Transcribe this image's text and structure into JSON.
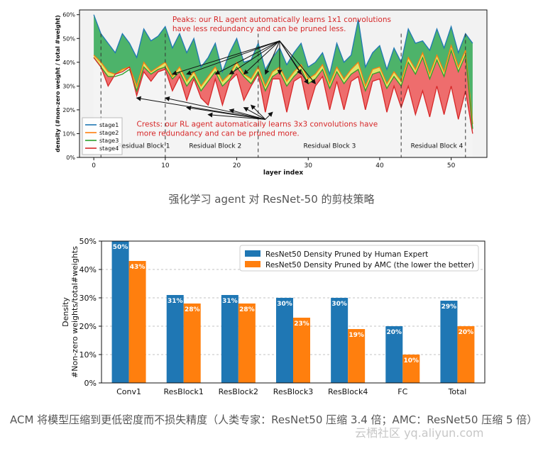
{
  "captions": {
    "top": "强化学习 agent 对 ResNet-50 的剪枝策略",
    "bottom": "ACM 将模型压缩到更低密度而不损失精度（人类专家：ResNet50 压缩 3.4 倍；AMC：ResNet50 压缩 5 倍）",
    "watermark": "云栖社区 yq.aliyun.com"
  },
  "chart_data": [
    {
      "type": "area",
      "xlabel": "layer index",
      "ylabel": "density (#non-zero weight / total #weight)",
      "xlim": [
        -2,
        55
      ],
      "ylim": [
        0,
        62
      ],
      "xticks": [
        0,
        10,
        20,
        30,
        40,
        50
      ],
      "yticks": [
        0,
        10,
        20,
        30,
        40,
        50,
        60
      ],
      "ytick_labels": [
        "0%",
        "10%",
        "20%",
        "30%",
        "40%",
        "50%",
        "60%"
      ],
      "legend_position": "lower-left",
      "block_boundaries": [
        1,
        10,
        23,
        43,
        52
      ],
      "block_labels": [
        {
          "text": "Residual Block 1",
          "x": 7,
          "y": 4
        },
        {
          "text": "Residual Block 2",
          "x": 17,
          "y": 4
        },
        {
          "text": "Residual Block 3",
          "x": 33,
          "y": 4
        },
        {
          "text": "Residual Block 4",
          "x": 48,
          "y": 4
        }
      ],
      "annotations": [
        {
          "text": "Peaks: our RL agent automatically learns 1x1 convolutions\nhave less redundancy and can be pruned less.",
          "x": 11,
          "y": 57,
          "color": "#d62728",
          "arrow_from": [
            26,
            49
          ],
          "arrow_targets": [
            [
              11,
              35
            ],
            [
              13,
              35
            ],
            [
              17,
              35
            ],
            [
              19,
              35
            ],
            [
              21,
              35
            ],
            [
              24,
              35
            ],
            [
              26,
              35
            ],
            [
              29,
              35
            ],
            [
              30,
              31
            ],
            [
              31,
              31
            ]
          ]
        },
        {
          "text": "Crests: our RL agent automatically learns 3x3 convolutions have\nmore redundancy and can be pruned more.",
          "x": 6,
          "y": 13,
          "color": "#d62728",
          "arrow_from": [
            24,
            16
          ],
          "arrow_targets": [
            [
              6,
              25
            ],
            [
              10,
              25
            ],
            [
              13,
              21
            ],
            [
              16,
              18
            ],
            [
              19,
              20
            ],
            [
              21,
              21
            ],
            [
              22,
              22
            ],
            [
              25,
              19
            ]
          ]
        }
      ],
      "x": [
        0,
        1,
        2,
        3,
        4,
        5,
        6,
        7,
        8,
        9,
        10,
        11,
        12,
        13,
        14,
        15,
        16,
        17,
        18,
        19,
        20,
        21,
        22,
        23,
        24,
        25,
        26,
        27,
        28,
        29,
        30,
        31,
        32,
        33,
        34,
        35,
        36,
        37,
        38,
        39,
        40,
        41,
        42,
        43,
        44,
        45,
        46,
        47,
        48,
        49,
        50,
        51,
        52,
        53
      ],
      "series": [
        {
          "name": "stage1",
          "color": "#1f77b4",
          "values": [
            60,
            52,
            48,
            44,
            52,
            48,
            42,
            54,
            49,
            51,
            55,
            46,
            52,
            44,
            50,
            38,
            42,
            48,
            36,
            44,
            50,
            40,
            41,
            48,
            37,
            42,
            46,
            39,
            44,
            48,
            38,
            40,
            44,
            35,
            48,
            40,
            43,
            58,
            38,
            44,
            47,
            37,
            46,
            40,
            54,
            48,
            49,
            45,
            54,
            46,
            55,
            44,
            52,
            48
          ]
        },
        {
          "name": "stage2",
          "color": "#ff7f0e",
          "values": [
            43,
            40,
            36,
            35,
            37,
            38,
            30,
            40,
            36,
            38,
            40,
            34,
            38,
            32,
            36,
            30,
            34,
            38,
            32,
            35,
            40,
            35,
            33,
            38,
            30,
            36,
            38,
            32,
            36,
            39,
            33,
            35,
            39,
            31,
            38,
            33,
            37,
            40,
            30,
            37,
            38,
            31,
            36,
            32,
            42,
            37,
            44,
            35,
            43,
            36,
            47,
            38,
            45,
            14
          ]
        },
        {
          "name": "stage3",
          "color": "#2ca02c",
          "values": [
            42,
            38,
            34,
            34,
            35,
            37,
            28,
            38,
            35,
            37,
            38,
            33,
            36,
            30,
            34,
            28,
            32,
            36,
            30,
            33,
            38,
            34,
            31,
            36,
            28,
            34,
            36,
            30,
            34,
            37,
            31,
            33,
            37,
            29,
            36,
            31,
            35,
            37,
            28,
            35,
            36,
            29,
            34,
            30,
            40,
            35,
            42,
            33,
            41,
            34,
            45,
            36,
            43,
            12
          ]
        },
        {
          "name": "stage4",
          "color": "#d62728",
          "values": [
            42,
            38,
            30,
            35,
            36,
            38,
            26,
            36,
            32,
            36,
            37,
            28,
            34,
            24,
            33,
            25,
            22,
            33,
            22,
            32,
            35,
            24,
            30,
            35,
            19,
            33,
            33,
            19,
            32,
            34,
            20,
            30,
            34,
            20,
            32,
            20,
            32,
            34,
            20,
            32,
            33,
            19,
            30,
            21,
            30,
            18,
            28,
            17,
            30,
            18,
            30,
            16,
            28,
            10
          ]
        }
      ]
    },
    {
      "type": "bar",
      "ylabel": "Density\n#Non-zero weights/total#weights",
      "ylim": [
        0,
        50
      ],
      "yticks": [
        0,
        10,
        20,
        30,
        40,
        50
      ],
      "ytick_labels": [
        "0%",
        "10%",
        "20%",
        "30%",
        "40%",
        "50%"
      ],
      "grid": true,
      "legend_position": "top-right",
      "categories": [
        "Conv1",
        "ResBlock1",
        "ResBlock2",
        "ResBlock3",
        "ResBlock4",
        "FC",
        "Total"
      ],
      "series": [
        {
          "name": "ResNet50 Density Pruned by Human Expert",
          "color": "#1f77b4",
          "values": [
            50,
            31,
            31,
            30,
            30,
            20,
            29
          ],
          "labels": [
            "50%",
            "31%",
            "31%",
            "30%",
            "30%",
            "20%",
            "29%"
          ]
        },
        {
          "name": "ResNet50 Density Pruned by AMC (the lower the better)",
          "color": "#ff7f0e",
          "values": [
            43,
            28,
            28,
            23,
            19,
            10,
            20
          ],
          "labels": [
            "43%",
            "28%",
            "28%",
            "23%",
            "19%",
            "10%",
            "20%"
          ]
        }
      ]
    }
  ]
}
